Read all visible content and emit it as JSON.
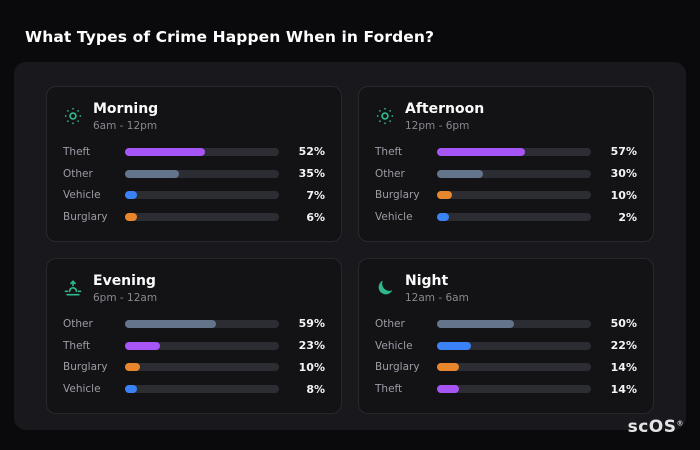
{
  "page": {
    "title": "What Types of Crime Happen When in Forden?",
    "brand": "scOS",
    "brand_reg": "®"
  },
  "colors": {
    "theft": "#a855f7",
    "other": "#64748b",
    "vehicle": "#3b82f6",
    "burglary": "#e8862d",
    "icon": "#2eb88a",
    "track": "#2c2c33"
  },
  "chart_data": [
    {
      "type": "bar",
      "title": "Morning",
      "subtitle": "6am - 12pm",
      "icon": "sun-icon",
      "unit": "%",
      "xlim": [
        0,
        100
      ],
      "categories": [
        "Theft",
        "Other",
        "Vehicle",
        "Burglary"
      ],
      "values": [
        52,
        35,
        7,
        6
      ]
    },
    {
      "type": "bar",
      "title": "Afternoon",
      "subtitle": "12pm - 6pm",
      "icon": "sun-icon",
      "unit": "%",
      "xlim": [
        0,
        100
      ],
      "categories": [
        "Theft",
        "Other",
        "Burglary",
        "Vehicle"
      ],
      "values": [
        57,
        30,
        10,
        2
      ]
    },
    {
      "type": "bar",
      "title": "Evening",
      "subtitle": "6pm - 12am",
      "icon": "sunset-icon",
      "unit": "%",
      "xlim": [
        0,
        100
      ],
      "categories": [
        "Other",
        "Theft",
        "Burglary",
        "Vehicle"
      ],
      "values": [
        59,
        23,
        10,
        8
      ]
    },
    {
      "type": "bar",
      "title": "Night",
      "subtitle": "12am - 6am",
      "icon": "moon-icon",
      "unit": "%",
      "xlim": [
        0,
        100
      ],
      "categories": [
        "Other",
        "Vehicle",
        "Burglary",
        "Theft"
      ],
      "values": [
        50,
        22,
        14,
        14
      ]
    }
  ]
}
